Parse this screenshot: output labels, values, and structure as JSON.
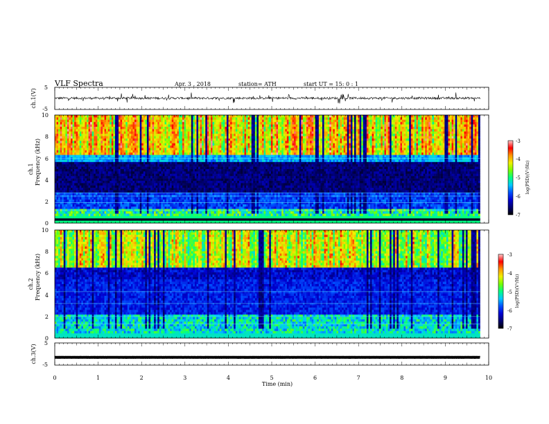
{
  "header": {
    "title": "VLF  Spectra",
    "date": "Apr. 3  , 2018",
    "station": "station= ATH",
    "start": "start  UT  =    15: 0   : 1"
  },
  "chart_data": [
    {
      "type": "line",
      "name": "ch1-waveform",
      "ylabel": "ch.1(V)",
      "yticks": [
        "5",
        "-5"
      ],
      "ylim": [
        -5,
        5
      ],
      "xlim": [
        0,
        10
      ],
      "baseline": 0.1,
      "noise_amplitude": 1.0,
      "data_end_min": 9.8
    },
    {
      "type": "heatmap",
      "name": "ch1-spectrogram",
      "ylabel_channel": "ch.1",
      "ylabel": "Frequency  (kHz)",
      "yticks": [
        "0",
        "2",
        "4",
        "6",
        "8",
        "10"
      ],
      "ylim": [
        0,
        10
      ],
      "xlim": [
        0,
        10
      ],
      "data_end_min": 9.8,
      "colorbar": {
        "label": "log(PSD)(V²/Hz)",
        "ticks": [
          "-3",
          "-4",
          "-5",
          "-6",
          "-7"
        ],
        "range": [
          -7,
          -3
        ]
      }
    },
    {
      "type": "heatmap",
      "name": "ch2-spectrogram",
      "ylabel_channel": "ch.2",
      "ylabel": "Frequency  (kHz)",
      "yticks": [
        "0",
        "2",
        "4",
        "6",
        "8",
        "10"
      ],
      "ylim": [
        0,
        10
      ],
      "xlim": [
        0,
        10
      ],
      "data_end_min": 9.8,
      "colorbar": {
        "label": "log(PSD)(V²/Hz)",
        "ticks": [
          "-3",
          "-4",
          "-5",
          "-6",
          "-7"
        ],
        "range": [
          -7,
          -3
        ]
      }
    },
    {
      "type": "line",
      "name": "ch3-waveform",
      "ylabel": "ch.3(V)",
      "yticks": [
        "5",
        "-5"
      ],
      "ylim": [
        -5,
        5
      ],
      "xlim": [
        0,
        10
      ],
      "baseline": -1.5,
      "noise_amplitude": 0.05,
      "data_end_min": 9.8
    }
  ],
  "xaxis": {
    "label": "Time  (min)",
    "ticks": [
      "0",
      "1",
      "2",
      "3",
      "4",
      "5",
      "6",
      "7",
      "8",
      "9",
      "10"
    ]
  },
  "colors": {
    "scale": [
      "#000000",
      "#00006e",
      "#0000d2",
      "#0050ff",
      "#00c8ff",
      "#00ff82",
      "#78ff00",
      "#f0f000",
      "#ff9600",
      "#ff0000",
      "#ffc8c8"
    ]
  }
}
